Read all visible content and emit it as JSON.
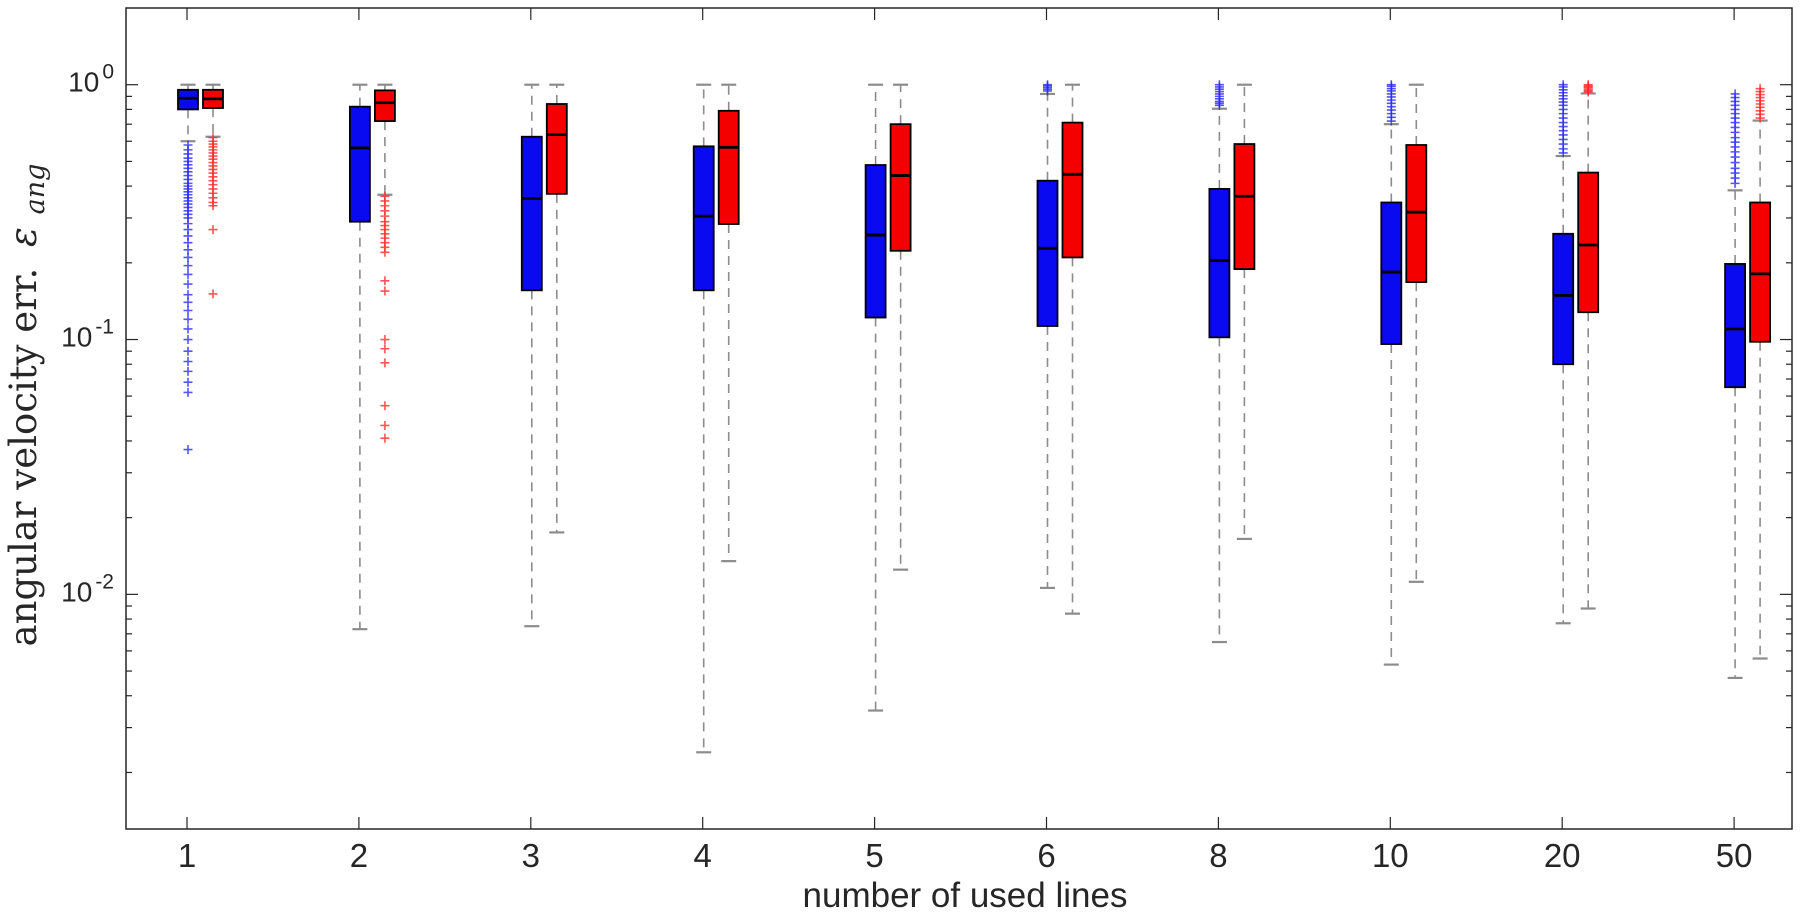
{
  "figure": {
    "background": "#ffffff",
    "xlabel": "number of used lines",
    "ylabel": {
      "text": "angular velocity err.",
      "symbol": "ε",
      "subscript": "ang"
    }
  },
  "chart_data": {
    "type": "boxplot",
    "title": "",
    "xlabel": "number of used lines",
    "ylabel": {
      "text": "angular velocity err.",
      "symbol": "ε",
      "subscript": "ang"
    },
    "x_scale": "categorical",
    "y_scale": "log",
    "y_range": [
      0.0012,
      2.0
    ],
    "grid": false,
    "legend": "none",
    "categories": [
      "1",
      "2",
      "3",
      "4",
      "5",
      "6",
      "8",
      "10",
      "20",
      "50"
    ],
    "y_major_ticks": [
      {
        "value": 1,
        "base": "10",
        "exp": "0"
      },
      {
        "value": 0.1,
        "base": "10",
        "exp": "-1"
      },
      {
        "value": 0.01,
        "base": "10",
        "exp": "-2"
      }
    ],
    "styles": {
      "blue_fill": "#0a0af0",
      "red_fill": "#f40000",
      "box_border": "#000000",
      "median": "#000000",
      "whisker": "#8c8c8c",
      "axis": "#262626",
      "outlier_blue": "#2a2aff",
      "outlier_red": "#ff2a2a"
    },
    "series": [
      {
        "name": "blue",
        "boxes": [
          {
            "category": "1",
            "whisker_lo": 0.6,
            "q1": 0.8,
            "median": 0.885,
            "q3": 0.955,
            "whisker_hi": 1.0,
            "outliers": [
              0.58,
              0.555,
              0.535,
              0.515,
              0.5,
              0.485,
              0.47,
              0.455,
              0.44,
              0.425,
              0.41,
              0.4,
              0.39,
              0.38,
              0.37,
              0.36,
              0.35,
              0.34,
              0.33,
              0.32,
              0.31,
              0.3,
              0.285,
              0.27,
              0.255,
              0.24,
              0.225,
              0.21,
              0.195,
              0.18,
              0.165,
              0.15,
              0.14,
              0.13,
              0.12,
              0.11,
              0.1,
              0.09,
              0.082,
              0.075,
              0.068,
              0.062,
              0.037
            ]
          },
          {
            "category": "2",
            "whisker_lo": 0.0073,
            "q1": 0.29,
            "median": 0.565,
            "q3": 0.82,
            "whisker_hi": 1.0,
            "outliers": []
          },
          {
            "category": "3",
            "whisker_lo": 0.0075,
            "q1": 0.156,
            "median": 0.358,
            "q3": 0.625,
            "whisker_hi": 1.0,
            "outliers": []
          },
          {
            "category": "4",
            "whisker_lo": 0.0024,
            "q1": 0.156,
            "median": 0.305,
            "q3": 0.573,
            "whisker_hi": 1.0,
            "outliers": []
          },
          {
            "category": "5",
            "whisker_lo": 0.0035,
            "q1": 0.122,
            "median": 0.257,
            "q3": 0.484,
            "whisker_hi": 1.0,
            "outliers": []
          },
          {
            "category": "6",
            "whisker_lo": 0.0106,
            "q1": 0.113,
            "median": 0.228,
            "q3": 0.42,
            "whisker_hi": 0.92,
            "outliers": [
              1.0,
              0.99,
              0.975,
              0.96,
              0.945
            ]
          },
          {
            "category": "8",
            "whisker_lo": 0.0065,
            "q1": 0.102,
            "median": 0.204,
            "q3": 0.39,
            "whisker_hi": 0.805,
            "outliers": [
              1.0,
              0.98,
              0.96,
              0.94,
              0.92,
              0.9,
              0.88,
              0.86,
              0.845,
              0.83
            ]
          },
          {
            "category": "10",
            "whisker_lo": 0.0053,
            "q1": 0.096,
            "median": 0.184,
            "q3": 0.345,
            "whisker_hi": 0.7,
            "outliers": [
              1.0,
              0.985,
              0.965,
              0.945,
              0.92,
              0.895,
              0.87,
              0.845,
              0.82,
              0.795,
              0.77,
              0.745,
              0.72
            ]
          },
          {
            "category": "20",
            "whisker_lo": 0.0077,
            "q1": 0.08,
            "median": 0.149,
            "q3": 0.26,
            "whisker_hi": 0.525,
            "outliers": [
              1.0,
              0.98,
              0.955,
              0.93,
              0.905,
              0.88,
              0.855,
              0.83,
              0.8,
              0.77,
              0.74,
              0.71,
              0.685,
              0.66,
              0.635,
              0.61,
              0.585,
              0.56,
              0.54
            ]
          },
          {
            "category": "50",
            "whisker_lo": 0.0047,
            "q1": 0.065,
            "median": 0.11,
            "q3": 0.198,
            "whisker_hi": 0.385,
            "outliers": [
              0.92,
              0.89,
              0.86,
              0.83,
              0.8,
              0.77,
              0.74,
              0.71,
              0.68,
              0.65,
              0.62,
              0.595,
              0.57,
              0.545,
              0.52,
              0.495,
              0.47,
              0.45,
              0.43,
              0.41
            ]
          }
        ]
      },
      {
        "name": "red",
        "boxes": [
          {
            "category": "1",
            "whisker_lo": 0.625,
            "q1": 0.81,
            "median": 0.88,
            "q3": 0.955,
            "whisker_hi": 1.0,
            "outliers": [
              0.62,
              0.6,
              0.585,
              0.57,
              0.555,
              0.54,
              0.525,
              0.51,
              0.495,
              0.48,
              0.465,
              0.45,
              0.435,
              0.42,
              0.405,
              0.39,
              0.375,
              0.36,
              0.345,
              0.335,
              0.27,
              0.151
            ]
          },
          {
            "category": "2",
            "whisker_lo": 0.37,
            "q1": 0.72,
            "median": 0.85,
            "q3": 0.95,
            "whisker_hi": 1.0,
            "outliers": [
              0.365,
              0.35,
              0.335,
              0.32,
              0.305,
              0.29,
              0.28,
              0.27,
              0.26,
              0.25,
              0.24,
              0.23,
              0.22,
              0.17,
              0.155,
              0.1,
              0.092,
              0.081,
              0.055,
              0.046,
              0.041
            ]
          },
          {
            "category": "3",
            "whisker_lo": 0.0175,
            "q1": 0.373,
            "median": 0.637,
            "q3": 0.84,
            "whisker_hi": 1.0,
            "outliers": []
          },
          {
            "category": "4",
            "whisker_lo": 0.0135,
            "q1": 0.284,
            "median": 0.568,
            "q3": 0.79,
            "whisker_hi": 1.0,
            "outliers": []
          },
          {
            "category": "5",
            "whisker_lo": 0.0125,
            "q1": 0.223,
            "median": 0.44,
            "q3": 0.7,
            "whisker_hi": 1.0,
            "outliers": []
          },
          {
            "category": "6",
            "whisker_lo": 0.0084,
            "q1": 0.21,
            "median": 0.445,
            "q3": 0.71,
            "whisker_hi": 1.0,
            "outliers": []
          },
          {
            "category": "8",
            "whisker_lo": 0.0165,
            "q1": 0.189,
            "median": 0.365,
            "q3": 0.585,
            "whisker_hi": 1.0,
            "outliers": []
          },
          {
            "category": "10",
            "whisker_lo": 0.0112,
            "q1": 0.168,
            "median": 0.316,
            "q3": 0.58,
            "whisker_hi": 1.0,
            "outliers": []
          },
          {
            "category": "20",
            "whisker_lo": 0.0088,
            "q1": 0.128,
            "median": 0.235,
            "q3": 0.452,
            "whisker_hi": 0.924,
            "outliers": [
              1.0,
              0.99,
              0.98,
              0.97,
              0.955,
              0.945,
              0.935
            ]
          },
          {
            "category": "50",
            "whisker_lo": 0.0056,
            "q1": 0.098,
            "median": 0.181,
            "q3": 0.345,
            "whisker_hi": 0.723,
            "outliers": [
              0.965,
              0.94,
              0.915,
              0.89,
              0.865,
              0.84,
              0.815,
              0.79,
              0.765,
              0.74
            ]
          }
        ]
      }
    ]
  }
}
